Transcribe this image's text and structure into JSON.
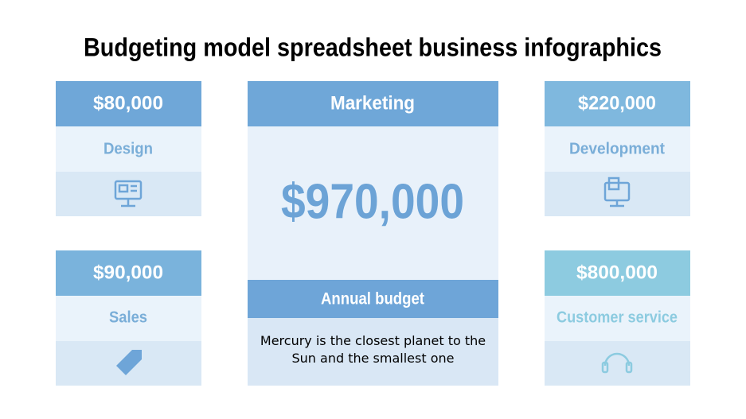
{
  "title": "Budgeting model spreadsheet business infographics",
  "cards": [
    {
      "amount": "$80,000",
      "label": "Design"
    },
    {
      "amount": "$90,000",
      "label": "Sales"
    },
    {
      "amount": "$220,000",
      "label": "Development"
    },
    {
      "amount": "$800,000",
      "label": "Customer service"
    }
  ],
  "center": {
    "header": "Marketing",
    "amount": "$970,000",
    "subheader": "Annual budget",
    "description": "Mercury is the closest planet to the Sun and the smallest one"
  }
}
